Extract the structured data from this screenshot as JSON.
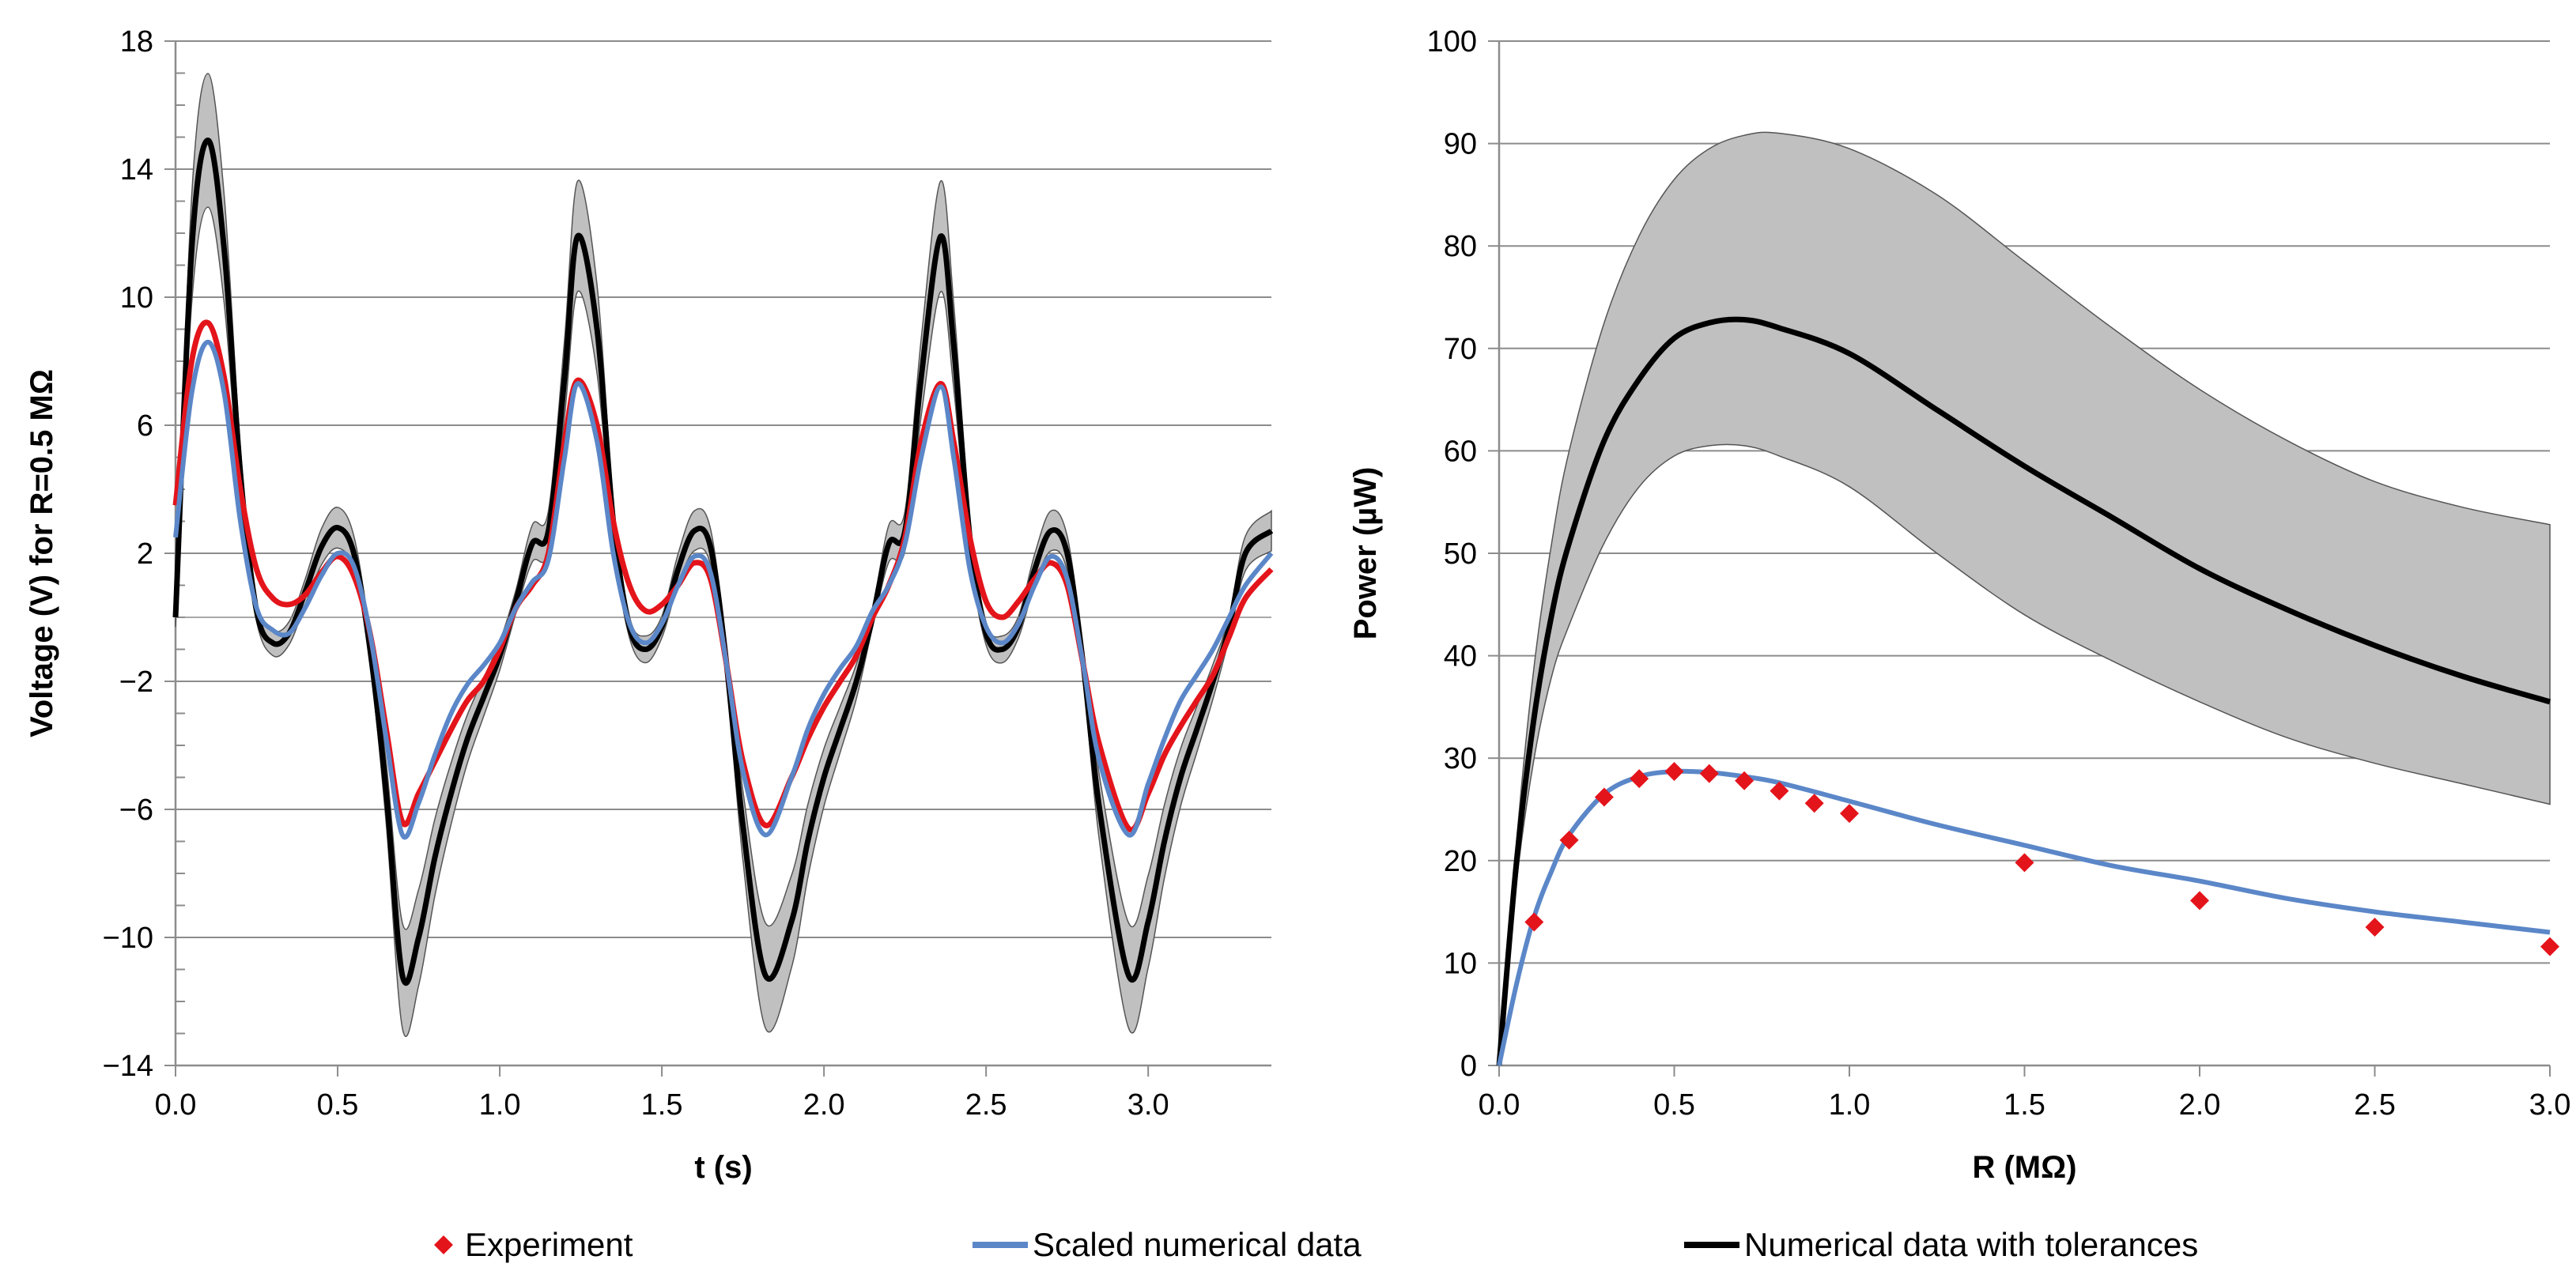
{
  "colors": {
    "experiment": "#e4141b",
    "scaled": "#5b87c8",
    "numerical": "#000000",
    "band": "#c0c0c0",
    "grid": "#8c8c8c"
  },
  "legend": {
    "experiment": "Experiment",
    "scaled": "Scaled numerical data",
    "numerical": "Numerical data with tolerances"
  },
  "chart_data": [
    {
      "type": "line",
      "xlabel": "t (s)",
      "ylabel": "Voltage (V) for  R=0.5 MΩ",
      "xlim": [
        0,
        3.38
      ],
      "ylim": [
        -14,
        18
      ],
      "x_ticks": [
        0.0,
        0.5,
        1.0,
        1.5,
        2.0,
        2.5,
        3.0
      ],
      "x_tick_labels": [
        "0.0",
        "0.5",
        "1.0",
        "1.5",
        "2.0",
        "2.5",
        "3.0"
      ],
      "y_ticks": [
        -14,
        -10,
        -6,
        -2,
        2,
        6,
        10,
        14,
        18
      ],
      "y_tick_labels": [
        "−14",
        "−10",
        "−6",
        "−2",
        "2",
        "6",
        "10",
        "14",
        "18"
      ],
      "grid": "horizontal",
      "series": [
        {
          "name": "Experiment",
          "x": [
            0.0,
            0.05,
            0.1,
            0.15,
            0.2,
            0.25,
            0.3,
            0.35,
            0.4,
            0.45,
            0.5,
            0.55,
            0.6,
            0.65,
            0.7,
            0.75,
            0.8,
            0.85,
            0.9,
            0.95,
            1.0,
            1.05,
            1.1,
            1.15,
            1.2,
            1.24,
            1.3,
            1.35,
            1.4,
            1.45,
            1.5,
            1.55,
            1.6,
            1.65,
            1.7,
            1.75,
            1.82,
            1.9,
            1.95,
            2.0,
            2.05,
            2.1,
            2.15,
            2.2,
            2.25,
            2.3,
            2.36,
            2.4,
            2.45,
            2.5,
            2.55,
            2.6,
            2.65,
            2.7,
            2.75,
            2.8,
            2.85,
            2.94,
            3.0,
            3.05,
            3.1,
            3.15,
            3.2,
            3.25,
            3.3,
            3.38
          ],
          "y": [
            3.5,
            8.0,
            9.2,
            7.5,
            4.0,
            1.5,
            0.6,
            0.4,
            0.7,
            1.4,
            1.9,
            1.3,
            -0.5,
            -3.5,
            -6.4,
            -5.5,
            -4.5,
            -3.5,
            -2.6,
            -2.0,
            -1.0,
            0.3,
            1.0,
            2.0,
            5.5,
            7.4,
            6.0,
            3.0,
            1.0,
            0.2,
            0.4,
            1.0,
            1.7,
            1.2,
            -1.5,
            -4.5,
            -6.5,
            -5.0,
            -3.8,
            -2.8,
            -2.0,
            -1.2,
            0.0,
            1.0,
            2.5,
            5.5,
            7.3,
            5.5,
            2.5,
            0.5,
            0.0,
            0.5,
            1.2,
            1.7,
            1.0,
            -1.5,
            -4.0,
            -6.6,
            -5.5,
            -4.3,
            -3.4,
            -2.6,
            -1.8,
            -0.6,
            0.6,
            1.5
          ],
          "marker": "diamond"
        },
        {
          "name": "Scaled numerical data",
          "x": [
            0.0,
            0.05,
            0.1,
            0.15,
            0.2,
            0.25,
            0.3,
            0.35,
            0.4,
            0.45,
            0.5,
            0.55,
            0.6,
            0.65,
            0.7,
            0.75,
            0.8,
            0.85,
            0.9,
            0.95,
            1.0,
            1.05,
            1.1,
            1.15,
            1.2,
            1.24,
            1.3,
            1.35,
            1.4,
            1.45,
            1.5,
            1.55,
            1.6,
            1.65,
            1.7,
            1.75,
            1.82,
            1.9,
            1.95,
            2.0,
            2.05,
            2.1,
            2.15,
            2.2,
            2.25,
            2.3,
            2.36,
            2.4,
            2.45,
            2.5,
            2.55,
            2.6,
            2.65,
            2.7,
            2.75,
            2.8,
            2.85,
            2.94,
            3.0,
            3.05,
            3.1,
            3.15,
            3.2,
            3.25,
            3.3,
            3.38
          ],
          "y": [
            2.5,
            7.0,
            8.6,
            7.0,
            3.0,
            0.3,
            -0.4,
            -0.5,
            0.3,
            1.3,
            2.0,
            1.6,
            -0.5,
            -3.8,
            -6.8,
            -5.8,
            -4.3,
            -3.0,
            -2.1,
            -1.5,
            -0.8,
            0.3,
            1.1,
            1.8,
            5.0,
            7.3,
            5.5,
            2.0,
            -0.2,
            -0.8,
            -0.2,
            1.0,
            1.9,
            1.4,
            -1.5,
            -4.8,
            -6.8,
            -5.0,
            -3.5,
            -2.4,
            -1.6,
            -0.9,
            0.2,
            1.0,
            2.3,
            5.0,
            7.2,
            5.0,
            1.5,
            -0.3,
            -0.8,
            -0.2,
            1.0,
            1.9,
            1.2,
            -1.5,
            -4.5,
            -6.8,
            -5.2,
            -3.8,
            -2.6,
            -1.8,
            -1.0,
            0.0,
            1.0,
            2.0
          ]
        },
        {
          "name": "Numerical data with tolerances",
          "x": [
            0.0,
            0.05,
            0.1,
            0.15,
            0.2,
            0.25,
            0.3,
            0.35,
            0.4,
            0.45,
            0.5,
            0.55,
            0.6,
            0.65,
            0.7,
            0.75,
            0.8,
            0.85,
            0.9,
            0.95,
            1.0,
            1.05,
            1.1,
            1.15,
            1.2,
            1.24,
            1.3,
            1.35,
            1.4,
            1.45,
            1.5,
            1.55,
            1.6,
            1.65,
            1.7,
            1.75,
            1.82,
            1.9,
            1.95,
            2.0,
            2.05,
            2.1,
            2.15,
            2.2,
            2.25,
            2.3,
            2.36,
            2.4,
            2.45,
            2.5,
            2.55,
            2.6,
            2.65,
            2.7,
            2.75,
            2.8,
            2.85,
            2.94,
            3.0,
            3.05,
            3.1,
            3.15,
            3.2,
            3.25,
            3.3,
            3.38
          ],
          "y": [
            0.0,
            11.5,
            14.9,
            11.5,
            4.5,
            0.2,
            -0.8,
            -0.5,
            0.8,
            2.2,
            2.8,
            2.0,
            -1.0,
            -5.5,
            -11.2,
            -10.0,
            -7.5,
            -5.5,
            -3.8,
            -2.5,
            -1.2,
            0.5,
            2.3,
            2.7,
            7.5,
            11.9,
            9.0,
            3.0,
            -0.3,
            -1.0,
            -0.3,
            1.5,
            2.7,
            2.2,
            -1.5,
            -6.5,
            -11.2,
            -9.5,
            -7.0,
            -5.0,
            -3.5,
            -2.0,
            0.0,
            2.3,
            2.7,
            7.5,
            11.9,
            8.5,
            2.5,
            -0.5,
            -1.0,
            -0.3,
            1.5,
            2.7,
            2.0,
            -1.5,
            -6.0,
            -11.2,
            -9.5,
            -7.0,
            -5.0,
            -3.5,
            -2.0,
            -0.3,
            2.0,
            2.7
          ],
          "band_half_width": 0.12
        }
      ]
    },
    {
      "type": "line",
      "xlabel": "R (MΩ)",
      "ylabel": "Power (µW)",
      "xlim": [
        0,
        3.0
      ],
      "ylim": [
        0,
        100
      ],
      "x_ticks": [
        0.0,
        0.5,
        1.0,
        1.5,
        2.0,
        2.5,
        3.0
      ],
      "x_tick_labels": [
        "0.0",
        "0.5",
        "1.0",
        "1.5",
        "2.0",
        "2.5",
        "3.0"
      ],
      "y_ticks": [
        0,
        10,
        20,
        30,
        40,
        50,
        60,
        70,
        80,
        90,
        100
      ],
      "y_tick_labels": [
        "0",
        "10",
        "20",
        "30",
        "40",
        "50",
        "60",
        "70",
        "80",
        "90",
        "100"
      ],
      "grid": "horizontal",
      "series": [
        {
          "name": "Experiment",
          "x": [
            0.1,
            0.2,
            0.3,
            0.4,
            0.5,
            0.6,
            0.7,
            0.8,
            0.9,
            1.0,
            1.5,
            2.0,
            2.5,
            3.0
          ],
          "y": [
            14.0,
            22.0,
            26.2,
            28.0,
            28.7,
            28.5,
            27.8,
            26.8,
            25.6,
            24.6,
            19.8,
            16.1,
            13.5,
            11.6
          ],
          "marker": "diamond"
        },
        {
          "name": "Scaled numerical data",
          "x": [
            0.0,
            0.05,
            0.1,
            0.15,
            0.2,
            0.3,
            0.4,
            0.5,
            0.6,
            0.7,
            0.8,
            1.0,
            1.25,
            1.5,
            1.75,
            2.0,
            2.25,
            2.5,
            2.75,
            3.0
          ],
          "y": [
            0.0,
            8.0,
            14.5,
            19.0,
            22.5,
            26.5,
            28.2,
            28.7,
            28.6,
            28.2,
            27.6,
            25.8,
            23.5,
            21.5,
            19.5,
            18.0,
            16.3,
            15.0,
            14.0,
            13.0
          ]
        },
        {
          "name": "Numerical data with tolerances",
          "x": [
            0.0,
            0.05,
            0.1,
            0.15,
            0.2,
            0.3,
            0.4,
            0.5,
            0.6,
            0.7,
            0.8,
            1.0,
            1.25,
            1.5,
            1.75,
            2.0,
            2.25,
            2.5,
            2.75,
            3.0
          ],
          "y": [
            0.0,
            20.0,
            34.0,
            44.0,
            51.0,
            61.0,
            67.0,
            71.0,
            72.5,
            72.8,
            72.0,
            69.5,
            64.0,
            58.5,
            53.5,
            48.5,
            44.5,
            41.0,
            38.0,
            35.5
          ],
          "upper": [
            0.0,
            22.0,
            39.0,
            51.0,
            60.0,
            72.5,
            81.0,
            86.5,
            89.5,
            90.8,
            91.0,
            89.5,
            85.0,
            78.5,
            72.0,
            66.0,
            61.0,
            57.0,
            54.5,
            52.8
          ],
          "lower": [
            0.0,
            18.0,
            30.0,
            38.0,
            43.0,
            51.0,
            56.5,
            59.5,
            60.5,
            60.5,
            59.5,
            56.5,
            50.0,
            44.0,
            39.5,
            35.5,
            32.0,
            29.5,
            27.5,
            25.5
          ]
        }
      ]
    }
  ]
}
